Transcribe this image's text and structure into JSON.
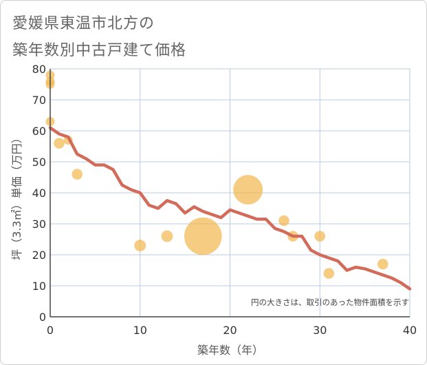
{
  "title_line1": "愛媛県東温市北方の",
  "title_line2": "築年数別中古戸建て価格",
  "chart_data": {
    "type": "scatter",
    "title": "愛媛県東温市北方の 築年数別中古戸建て価格",
    "xlabel": "築年数（年）",
    "ylabel": "坪（3.3㎡）単価（万円）",
    "xlim": [
      0,
      40
    ],
    "ylim": [
      0,
      80
    ],
    "xticks": [
      "0",
      "10",
      "20",
      "30",
      "40"
    ],
    "yticks": [
      "0",
      "10",
      "20",
      "30",
      "40",
      "50",
      "60",
      "70",
      "80"
    ],
    "grid": true,
    "note": "円の大きさは、取引のあった物件面積を示す",
    "points": [
      {
        "x": 0,
        "y": 78,
        "size": 1
      },
      {
        "x": 0,
        "y": 76,
        "size": 1
      },
      {
        "x": 0,
        "y": 75,
        "size": 1
      },
      {
        "x": 0,
        "y": 63,
        "size": 1
      },
      {
        "x": 1,
        "y": 56,
        "size": 1.2
      },
      {
        "x": 2,
        "y": 57,
        "size": 1
      },
      {
        "x": 3,
        "y": 46,
        "size": 1.2
      },
      {
        "x": 10,
        "y": 23,
        "size": 1.3
      },
      {
        "x": 13,
        "y": 26,
        "size": 1.3
      },
      {
        "x": 17,
        "y": 26,
        "size": 4.2
      },
      {
        "x": 22,
        "y": 41,
        "size": 3.3
      },
      {
        "x": 26,
        "y": 31,
        "size": 1.2
      },
      {
        "x": 27,
        "y": 26,
        "size": 1.2
      },
      {
        "x": 30,
        "y": 26,
        "size": 1.2
      },
      {
        "x": 31,
        "y": 14,
        "size": 1.2
      },
      {
        "x": 37,
        "y": 17,
        "size": 1.2
      }
    ],
    "trend": {
      "x": [
        0,
        1,
        2,
        3,
        4,
        5,
        6,
        7,
        8,
        9,
        10,
        11,
        12,
        13,
        14,
        15,
        16,
        17,
        18,
        19,
        20,
        21,
        22,
        23,
        24,
        25,
        26,
        27,
        28,
        29,
        30,
        31,
        32,
        33,
        34,
        35,
        36,
        37,
        38,
        39,
        40
      ],
      "y": [
        61,
        59,
        58,
        52.5,
        51,
        49,
        49,
        47.5,
        42.5,
        41,
        40,
        36,
        35,
        37.5,
        36.5,
        33.5,
        35.5,
        34,
        33,
        32,
        34.5,
        33.5,
        32.5,
        31.5,
        31.5,
        28.5,
        27.5,
        26,
        26,
        21.5,
        20,
        19,
        18,
        15,
        16,
        15.5,
        14.5,
        13.5,
        12.5,
        11,
        9
      ]
    },
    "colors": {
      "bubble": "#f1b64b",
      "trend": "#d36b5a",
      "grid": "#b8cce4",
      "axis": "#444444"
    }
  }
}
